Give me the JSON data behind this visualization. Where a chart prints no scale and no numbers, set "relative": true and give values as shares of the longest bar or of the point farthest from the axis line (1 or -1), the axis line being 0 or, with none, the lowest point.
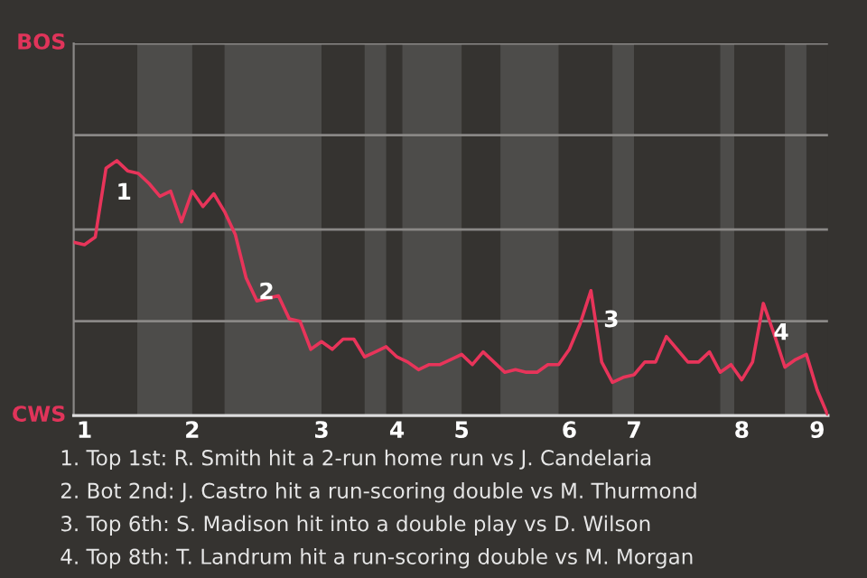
{
  "chart_data": {
    "type": "line",
    "relative": true,
    "categories": [
      null,
      "1",
      null,
      null,
      null,
      null,
      null,
      null,
      null,
      null,
      null,
      "2",
      null,
      null,
      null,
      null,
      null,
      null,
      null,
      null,
      null,
      null,
      null,
      "3",
      null,
      null,
      null,
      null,
      null,
      null,
      "4",
      null,
      null,
      null,
      null,
      null,
      "5",
      null,
      null,
      null,
      null,
      null,
      null,
      null,
      null,
      null,
      "6",
      null,
      null,
      null,
      null,
      null,
      "7",
      null,
      null,
      null,
      null,
      null,
      null,
      null,
      null,
      null,
      "8",
      null,
      null,
      null,
      null,
      null,
      null,
      "9",
      null
    ],
    "series": [
      {
        "color": "#e8345a",
        "values": [
          0.68,
          0.67,
          0.7,
          0.97,
          1,
          0.96,
          0.95,
          0.91,
          0.86,
          0.88,
          0.76,
          0.88,
          0.82,
          0.87,
          0.8,
          0.71,
          0.54,
          0.45,
          0.46,
          0.47,
          0.38,
          0.37,
          0.26,
          0.29,
          0.26,
          0.3,
          0.3,
          0.23,
          0.25,
          0.27,
          0.23,
          0.21,
          0.18,
          0.2,
          0.2,
          0.22,
          0.24,
          0.2,
          0.25,
          0.21,
          0.17,
          0.18,
          0.17,
          0.17,
          0.2,
          0.2,
          0.26,
          0.36,
          0.49,
          0.21,
          0.13,
          0.15,
          0.16,
          0.21,
          0.21,
          0.31,
          0.26,
          0.21,
          0.21,
          0.25,
          0.17,
          0.2,
          0.14,
          0.21,
          0.44,
          0.32,
          0.19,
          0.22,
          0.24,
          0.1,
          0
        ]
      }
    ],
    "marker": "none",
    "line_style": "solid",
    "ref_lines": [
      {
        "axis": "y",
        "value": 0.37,
        "color": "#8a8886"
      },
      {
        "axis": "y",
        "value": 0.73,
        "color": "#8a8886"
      },
      {
        "axis": "y",
        "value": 1.1,
        "color": "#8a8886"
      },
      {
        "axis": "y",
        "value": 1.46,
        "color": "#8a8886"
      }
    ],
    "annotations": [
      "1",
      "2",
      "3",
      "4",
      "BOS",
      "CWS",
      "1. Top 1st: R. Smith hit a 2-run home run vs J. Candelaria",
      "2. Bot 2nd: J. Castro hit a run-scoring double vs M. Thurmond",
      "3. Top 6th: S. Madison hit into a double play vs D. Wilson",
      "4. Top 8th: T. Landrum hit a run-scoring double vs M. Morgan"
    ]
  }
}
